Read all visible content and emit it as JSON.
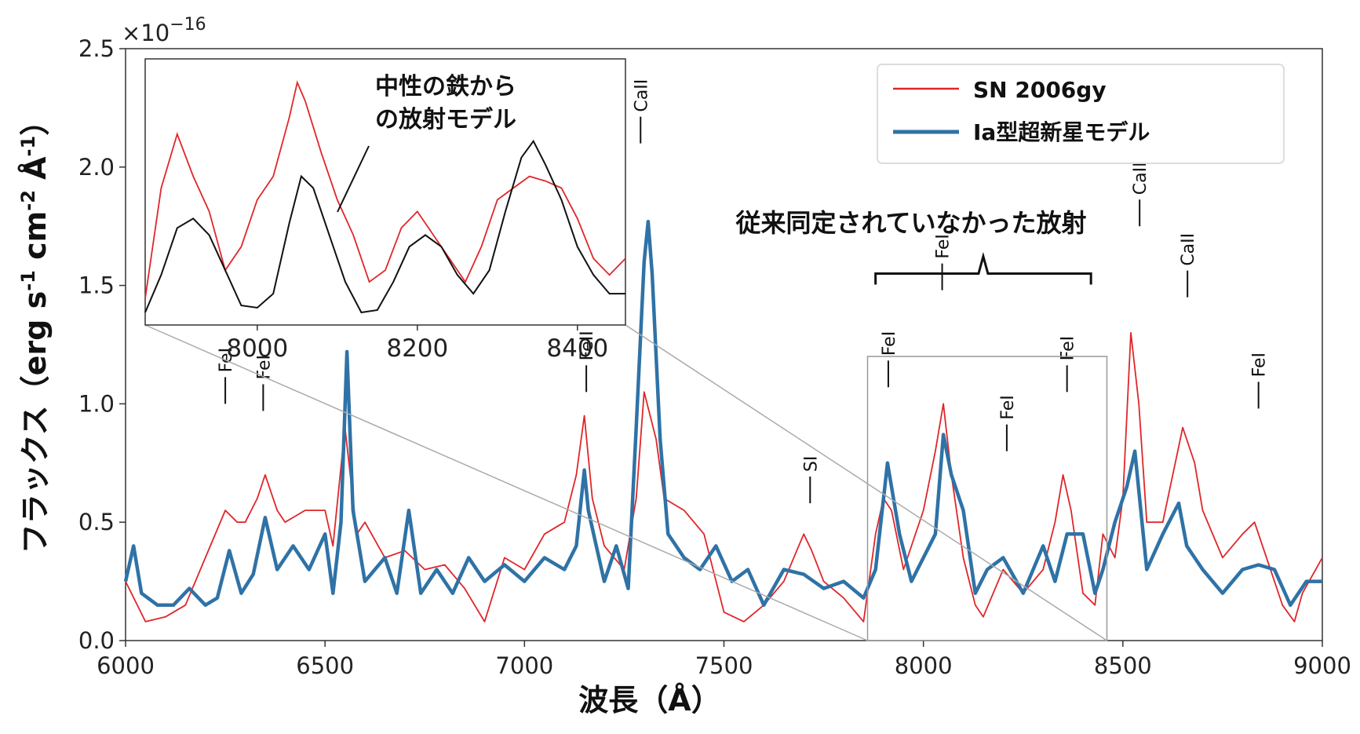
{
  "chart_data": {
    "type": "line",
    "xlabel": "波長（Å）",
    "ylabel": "フラックス（erg s-1 cm-2 Å-1）",
    "ylabel_parts": {
      "prefix": "フラックス（erg s",
      "exp1": "-1",
      "mid1": " cm",
      "exp2": "-2",
      "mid2": " Å",
      "exp3": "-1",
      "suffix": "）"
    },
    "y_multiplier": {
      "base": "×10",
      "exponent": "−16"
    },
    "xlim": [
      6000,
      9000
    ],
    "ylim": [
      0.0,
      2.5
    ],
    "x_ticks": [
      "6000",
      "6500",
      "7000",
      "7500",
      "8000",
      "8500",
      "9000"
    ],
    "y_ticks": [
      "0.0",
      "0.5",
      "1.0",
      "1.5",
      "2.0",
      "2.5"
    ],
    "legend_position": "top-right",
    "series": [
      {
        "name": "SN 2006gy",
        "color": "#e0262a",
        "x": [
          6000,
          6050,
          6100,
          6150,
          6200,
          6250,
          6280,
          6300,
          6330,
          6350,
          6380,
          6400,
          6450,
          6500,
          6520,
          6550,
          6580,
          6600,
          6650,
          6700,
          6750,
          6800,
          6850,
          6900,
          6950,
          7000,
          7050,
          7100,
          7130,
          7150,
          7170,
          7200,
          7250,
          7280,
          7300,
          7330,
          7350,
          7400,
          7450,
          7500,
          7550,
          7600,
          7650,
          7700,
          7720,
          7750,
          7800,
          7850,
          7880,
          7900,
          7920,
          7950,
          8000,
          8030,
          8050,
          8070,
          8100,
          8130,
          8150,
          8200,
          8250,
          8300,
          8330,
          8350,
          8370,
          8400,
          8430,
          8450,
          8480,
          8500,
          8520,
          8540,
          8560,
          8600,
          8650,
          8680,
          8700,
          8750,
          8800,
          8830,
          8850,
          8900,
          8930,
          8950,
          9000
        ],
        "y": [
          0.25,
          0.08,
          0.1,
          0.15,
          0.35,
          0.55,
          0.5,
          0.5,
          0.6,
          0.7,
          0.55,
          0.5,
          0.55,
          0.55,
          0.4,
          0.9,
          0.45,
          0.5,
          0.35,
          0.38,
          0.3,
          0.32,
          0.22,
          0.08,
          0.35,
          0.3,
          0.45,
          0.5,
          0.7,
          0.95,
          0.6,
          0.4,
          0.3,
          0.6,
          1.05,
          0.85,
          0.6,
          0.55,
          0.45,
          0.12,
          0.08,
          0.15,
          0.25,
          0.45,
          0.38,
          0.25,
          0.18,
          0.08,
          0.45,
          0.6,
          0.55,
          0.3,
          0.55,
          0.8,
          1.0,
          0.7,
          0.35,
          0.15,
          0.1,
          0.3,
          0.2,
          0.3,
          0.5,
          0.7,
          0.55,
          0.2,
          0.15,
          0.45,
          0.35,
          0.6,
          1.3,
          1.0,
          0.5,
          0.5,
          0.9,
          0.75,
          0.55,
          0.35,
          0.45,
          0.5,
          0.4,
          0.15,
          0.08,
          0.2,
          0.35
        ]
      },
      {
        "name": "Ia型超新星モデル",
        "color": "#2f72a6",
        "x": [
          6000,
          6020,
          6040,
          6080,
          6120,
          6160,
          6200,
          6230,
          6260,
          6290,
          6320,
          6350,
          6380,
          6420,
          6460,
          6500,
          6520,
          6540,
          6555,
          6570,
          6600,
          6650,
          6680,
          6710,
          6740,
          6780,
          6820,
          6860,
          6900,
          6950,
          7000,
          7050,
          7100,
          7130,
          7150,
          7160,
          7180,
          7200,
          7230,
          7260,
          7280,
          7300,
          7310,
          7320,
          7340,
          7360,
          7400,
          7440,
          7480,
          7520,
          7560,
          7600,
          7650,
          7700,
          7750,
          7800,
          7850,
          7880,
          7910,
          7940,
          7970,
          8000,
          8030,
          8050,
          8070,
          8100,
          8130,
          8160,
          8200,
          8250,
          8300,
          8330,
          8360,
          8400,
          8430,
          8450,
          8480,
          8510,
          8530,
          8560,
          8600,
          8640,
          8660,
          8700,
          8750,
          8800,
          8840,
          8880,
          8920,
          8960,
          9000
        ],
        "y": [
          0.25,
          0.4,
          0.2,
          0.15,
          0.15,
          0.22,
          0.15,
          0.18,
          0.38,
          0.2,
          0.28,
          0.52,
          0.3,
          0.4,
          0.3,
          0.45,
          0.2,
          0.5,
          1.22,
          0.55,
          0.25,
          0.35,
          0.2,
          0.55,
          0.2,
          0.3,
          0.2,
          0.35,
          0.25,
          0.32,
          0.25,
          0.35,
          0.3,
          0.4,
          0.72,
          0.55,
          0.4,
          0.25,
          0.4,
          0.22,
          0.9,
          1.6,
          1.77,
          1.55,
          0.85,
          0.45,
          0.35,
          0.3,
          0.4,
          0.25,
          0.3,
          0.15,
          0.3,
          0.28,
          0.22,
          0.25,
          0.18,
          0.3,
          0.75,
          0.45,
          0.25,
          0.35,
          0.45,
          0.87,
          0.7,
          0.55,
          0.2,
          0.3,
          0.35,
          0.2,
          0.4,
          0.25,
          0.45,
          0.45,
          0.2,
          0.3,
          0.5,
          0.65,
          0.8,
          0.3,
          0.45,
          0.58,
          0.4,
          0.3,
          0.2,
          0.3,
          0.32,
          0.3,
          0.15,
          0.25,
          0.25
        ]
      }
    ],
    "line_ids": [
      {
        "label": "FeI",
        "x": 6250,
        "y": 1.0
      },
      {
        "label": "FeI",
        "x": 6345,
        "y": 0.97
      },
      {
        "label": "FeII",
        "x": 7155,
        "y": 1.05
      },
      {
        "label": "CaII",
        "x": 7291,
        "y": 2.1
      },
      {
        "label": "SI",
        "x": 7716,
        "y": 0.58
      },
      {
        "label": "FeI",
        "x": 7912,
        "y": 1.07
      },
      {
        "label": "FeI",
        "x": 8047,
        "y": 1.48
      },
      {
        "label": "FeI",
        "x": 8209,
        "y": 0.8
      },
      {
        "label": "FeI",
        "x": 8360,
        "y": 1.05
      },
      {
        "label": "CaII",
        "x": 8542,
        "y": 1.75
      },
      {
        "label": "CaII",
        "x": 8662,
        "y": 1.45
      },
      {
        "label": "FeI",
        "x": 8840,
        "y": 0.98
      }
    ],
    "annotation_bracket": {
      "text": "従来同定されていなかった放射",
      "x_start": 7880,
      "x_end": 8420,
      "y": 1.55
    },
    "zoom_box": {
      "x_start": 7860,
      "x_end": 8460,
      "y_start": 0.0,
      "y_end": 1.2
    },
    "inset": {
      "xlim": [
        7860,
        8460
      ],
      "x_ticks": [
        "8000",
        "8200",
        "8400"
      ],
      "annotation": {
        "line1": "中性の鉄から",
        "line2": "の放射モデル"
      },
      "observed": {
        "color": "#e0262a",
        "x": [
          7860,
          7880,
          7900,
          7920,
          7940,
          7960,
          7980,
          8000,
          8020,
          8040,
          8050,
          8060,
          8080,
          8100,
          8120,
          8140,
          8160,
          8180,
          8200,
          8220,
          8240,
          8260,
          8280,
          8300,
          8320,
          8340,
          8360,
          8380,
          8400,
          8420,
          8440,
          8460
        ],
        "y": [
          0.08,
          0.55,
          0.78,
          0.6,
          0.45,
          0.2,
          0.3,
          0.5,
          0.6,
          0.85,
          1.0,
          0.92,
          0.7,
          0.5,
          0.35,
          0.15,
          0.2,
          0.38,
          0.45,
          0.35,
          0.25,
          0.15,
          0.3,
          0.5,
          0.55,
          0.6,
          0.58,
          0.55,
          0.42,
          0.25,
          0.18,
          0.25
        ]
      },
      "model": {
        "color": "#111111",
        "x": [
          7860,
          7880,
          7900,
          7920,
          7940,
          7960,
          7980,
          8000,
          8020,
          8040,
          8055,
          8070,
          8090,
          8110,
          8130,
          8150,
          8170,
          8190,
          8210,
          8230,
          8250,
          8270,
          8290,
          8310,
          8330,
          8345,
          8360,
          8380,
          8400,
          8420,
          8440,
          8460
        ],
        "y": [
          0.02,
          0.18,
          0.38,
          0.42,
          0.35,
          0.2,
          0.05,
          0.04,
          0.1,
          0.4,
          0.6,
          0.55,
          0.35,
          0.15,
          0.02,
          0.03,
          0.15,
          0.3,
          0.35,
          0.3,
          0.18,
          0.1,
          0.2,
          0.45,
          0.68,
          0.75,
          0.65,
          0.5,
          0.3,
          0.18,
          0.1,
          0.1
        ]
      }
    }
  }
}
